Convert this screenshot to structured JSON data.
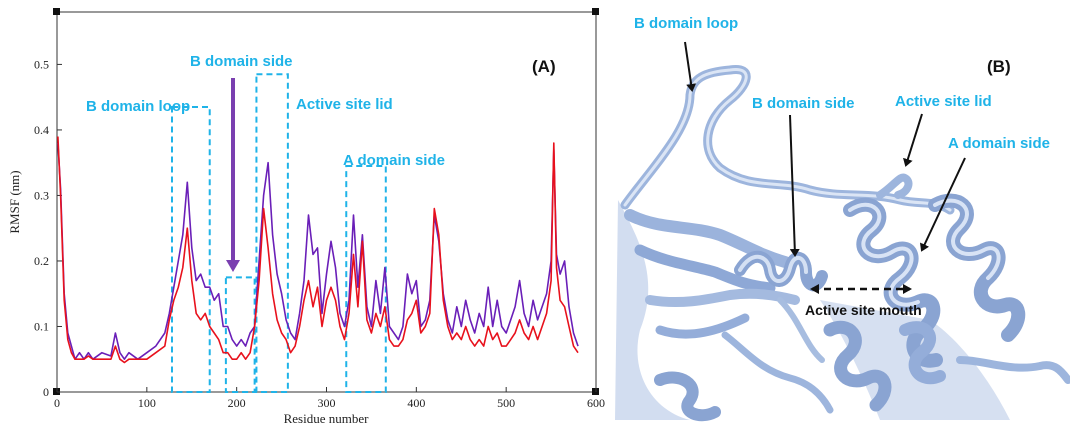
{
  "chart_data": {
    "type": "line",
    "title": "",
    "panel_label": "(A)",
    "xlabel": "Residue number",
    "ylabel": "RMSF (nm)",
    "xlim": [
      0,
      600
    ],
    "ylim": [
      0,
      0.58
    ],
    "xticks": [
      0,
      100,
      200,
      300,
      400,
      500,
      600
    ],
    "yticks": [
      0,
      0.1,
      0.2,
      0.3,
      0.4,
      0.5
    ],
    "ytick_labels": [
      "0",
      "0.1",
      "0.2",
      "0.3",
      "0.4",
      "0.5"
    ],
    "legend": "none",
    "grid": false,
    "series": [
      {
        "color": "#6a1fb8",
        "x": [
          1,
          4,
          8,
          12,
          16,
          20,
          25,
          30,
          35,
          40,
          50,
          60,
          65,
          70,
          75,
          80,
          90,
          100,
          110,
          120,
          125,
          130,
          135,
          140,
          145,
          150,
          155,
          160,
          165,
          170,
          175,
          180,
          185,
          190,
          195,
          200,
          205,
          210,
          215,
          220,
          225,
          230,
          235,
          240,
          245,
          250,
          255,
          260,
          265,
          270,
          275,
          280,
          285,
          290,
          295,
          300,
          305,
          310,
          315,
          320,
          325,
          330,
          335,
          340,
          345,
          350,
          355,
          360,
          365,
          370,
          375,
          380,
          385,
          390,
          395,
          400,
          405,
          410,
          415,
          420,
          425,
          430,
          435,
          440,
          445,
          450,
          455,
          460,
          465,
          470,
          475,
          480,
          485,
          490,
          495,
          500,
          505,
          510,
          515,
          520,
          525,
          530,
          535,
          540,
          545,
          550,
          553,
          556,
          560,
          565,
          570,
          575,
          580
        ],
        "y": [
          0.38,
          0.31,
          0.15,
          0.09,
          0.07,
          0.05,
          0.06,
          0.05,
          0.06,
          0.05,
          0.06,
          0.055,
          0.09,
          0.06,
          0.05,
          0.06,
          0.05,
          0.06,
          0.07,
          0.09,
          0.12,
          0.16,
          0.2,
          0.24,
          0.32,
          0.22,
          0.17,
          0.18,
          0.16,
          0.16,
          0.14,
          0.15,
          0.1,
          0.1,
          0.08,
          0.07,
          0.08,
          0.07,
          0.09,
          0.1,
          0.2,
          0.3,
          0.35,
          0.24,
          0.18,
          0.15,
          0.11,
          0.09,
          0.08,
          0.12,
          0.17,
          0.27,
          0.21,
          0.22,
          0.12,
          0.18,
          0.23,
          0.19,
          0.12,
          0.1,
          0.14,
          0.27,
          0.16,
          0.24,
          0.13,
          0.1,
          0.17,
          0.12,
          0.19,
          0.1,
          0.09,
          0.08,
          0.1,
          0.18,
          0.15,
          0.17,
          0.1,
          0.11,
          0.14,
          0.27,
          0.23,
          0.15,
          0.11,
          0.09,
          0.13,
          0.1,
          0.14,
          0.11,
          0.09,
          0.12,
          0.1,
          0.16,
          0.1,
          0.14,
          0.1,
          0.09,
          0.11,
          0.13,
          0.17,
          0.12,
          0.1,
          0.14,
          0.11,
          0.13,
          0.15,
          0.2,
          0.37,
          0.21,
          0.18,
          0.2,
          0.13,
          0.09,
          0.07
        ]
      },
      {
        "color": "#e8111c",
        "x": [
          1,
          4,
          8,
          12,
          16,
          20,
          25,
          30,
          35,
          40,
          50,
          60,
          65,
          70,
          75,
          80,
          90,
          100,
          110,
          120,
          125,
          130,
          135,
          140,
          145,
          150,
          155,
          160,
          165,
          170,
          175,
          180,
          185,
          190,
          195,
          200,
          205,
          210,
          215,
          220,
          225,
          230,
          235,
          240,
          245,
          250,
          255,
          260,
          265,
          270,
          275,
          280,
          285,
          290,
          295,
          300,
          305,
          310,
          315,
          320,
          325,
          330,
          335,
          340,
          345,
          350,
          355,
          360,
          365,
          370,
          375,
          380,
          385,
          390,
          395,
          400,
          405,
          410,
          415,
          420,
          425,
          430,
          435,
          440,
          445,
          450,
          455,
          460,
          465,
          470,
          475,
          480,
          485,
          490,
          495,
          500,
          505,
          510,
          515,
          520,
          525,
          530,
          535,
          540,
          545,
          550,
          553,
          556,
          560,
          565,
          570,
          575,
          580
        ],
        "y": [
          0.39,
          0.3,
          0.14,
          0.08,
          0.06,
          0.05,
          0.05,
          0.05,
          0.055,
          0.05,
          0.05,
          0.05,
          0.07,
          0.05,
          0.045,
          0.05,
          0.05,
          0.05,
          0.06,
          0.07,
          0.11,
          0.14,
          0.16,
          0.19,
          0.25,
          0.17,
          0.12,
          0.11,
          0.12,
          0.1,
          0.09,
          0.08,
          0.06,
          0.06,
          0.05,
          0.05,
          0.06,
          0.05,
          0.06,
          0.1,
          0.17,
          0.28,
          0.22,
          0.15,
          0.11,
          0.09,
          0.08,
          0.06,
          0.07,
          0.1,
          0.14,
          0.17,
          0.13,
          0.16,
          0.1,
          0.14,
          0.16,
          0.14,
          0.1,
          0.08,
          0.12,
          0.21,
          0.13,
          0.23,
          0.11,
          0.09,
          0.12,
          0.1,
          0.13,
          0.08,
          0.07,
          0.07,
          0.08,
          0.11,
          0.12,
          0.14,
          0.09,
          0.1,
          0.12,
          0.28,
          0.24,
          0.14,
          0.1,
          0.08,
          0.09,
          0.08,
          0.1,
          0.08,
          0.07,
          0.08,
          0.07,
          0.1,
          0.08,
          0.09,
          0.07,
          0.07,
          0.08,
          0.09,
          0.11,
          0.09,
          0.08,
          0.1,
          0.08,
          0.1,
          0.12,
          0.17,
          0.38,
          0.19,
          0.14,
          0.13,
          0.1,
          0.07,
          0.06
        ]
      }
    ],
    "annotations": [
      {
        "text": "B domain loop",
        "color": "#1fb3e8",
        "box_x": [
          128,
          170
        ],
        "box_y": [
          0,
          0.435
        ]
      },
      {
        "text": "B domain side",
        "color": "#1fb3e8",
        "box_x": [
          188,
          220
        ],
        "box_y": [
          0,
          0.175
        ],
        "arrow_color": "#7a3fb0"
      },
      {
        "text": "Active site lid",
        "color": "#1fb3e8",
        "box_x": [
          222,
          257
        ],
        "box_y": [
          0,
          0.485
        ]
      },
      {
        "text": "A domain side",
        "color": "#1fb3e8",
        "box_x": [
          322,
          366
        ],
        "box_y": [
          0,
          0.345
        ]
      }
    ]
  },
  "structure_panel": {
    "panel_label": "(B)",
    "labels": {
      "b_domain_loop": "B domain loop",
      "b_domain_side": "B domain side",
      "active_site_lid": "Active site lid",
      "a_domain_side": "A domain side",
      "active_site_mouth": "Active site mouth"
    },
    "ribbon_color": "#a7bde0",
    "label_color": "#1fb3e8"
  }
}
